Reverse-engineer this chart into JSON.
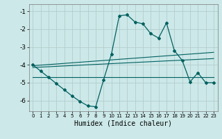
{
  "title": "",
  "xlabel": "Humidex (Indice chaleur)",
  "background_color": "#cce8e8",
  "grid_color": "#b0c8c8",
  "line_color": "#006060",
  "xlim": [
    -0.5,
    23.5
  ],
  "ylim": [
    -6.6,
    -0.6
  ],
  "yticks": [
    -6,
    -5,
    -4,
    -3,
    -2,
    -1
  ],
  "xticks": [
    0,
    1,
    2,
    3,
    4,
    5,
    6,
    7,
    8,
    9,
    10,
    11,
    12,
    13,
    14,
    15,
    16,
    17,
    18,
    19,
    20,
    21,
    22,
    23
  ],
  "line1_x": [
    0,
    1,
    2,
    3,
    4,
    5,
    6,
    7,
    8,
    9,
    10,
    11,
    12,
    13,
    14,
    15,
    16,
    17,
    18,
    19,
    20,
    21,
    22,
    23
  ],
  "line1_y": [
    -4.0,
    -4.35,
    -4.7,
    -5.05,
    -5.4,
    -5.75,
    -6.05,
    -6.3,
    -6.35,
    -4.85,
    -3.4,
    -1.25,
    -1.2,
    -1.6,
    -1.7,
    -2.25,
    -2.5,
    -1.65,
    -3.2,
    -3.75,
    -4.95,
    -4.45,
    -5.0,
    -5.0
  ],
  "line2_x": [
    0,
    23
  ],
  "line2_y": [
    -4.05,
    -3.3
  ],
  "line3_x": [
    0,
    23
  ],
  "line3_y": [
    -4.15,
    -3.65
  ],
  "line4_x": [
    0,
    23
  ],
  "line4_y": [
    -4.7,
    -4.7
  ]
}
